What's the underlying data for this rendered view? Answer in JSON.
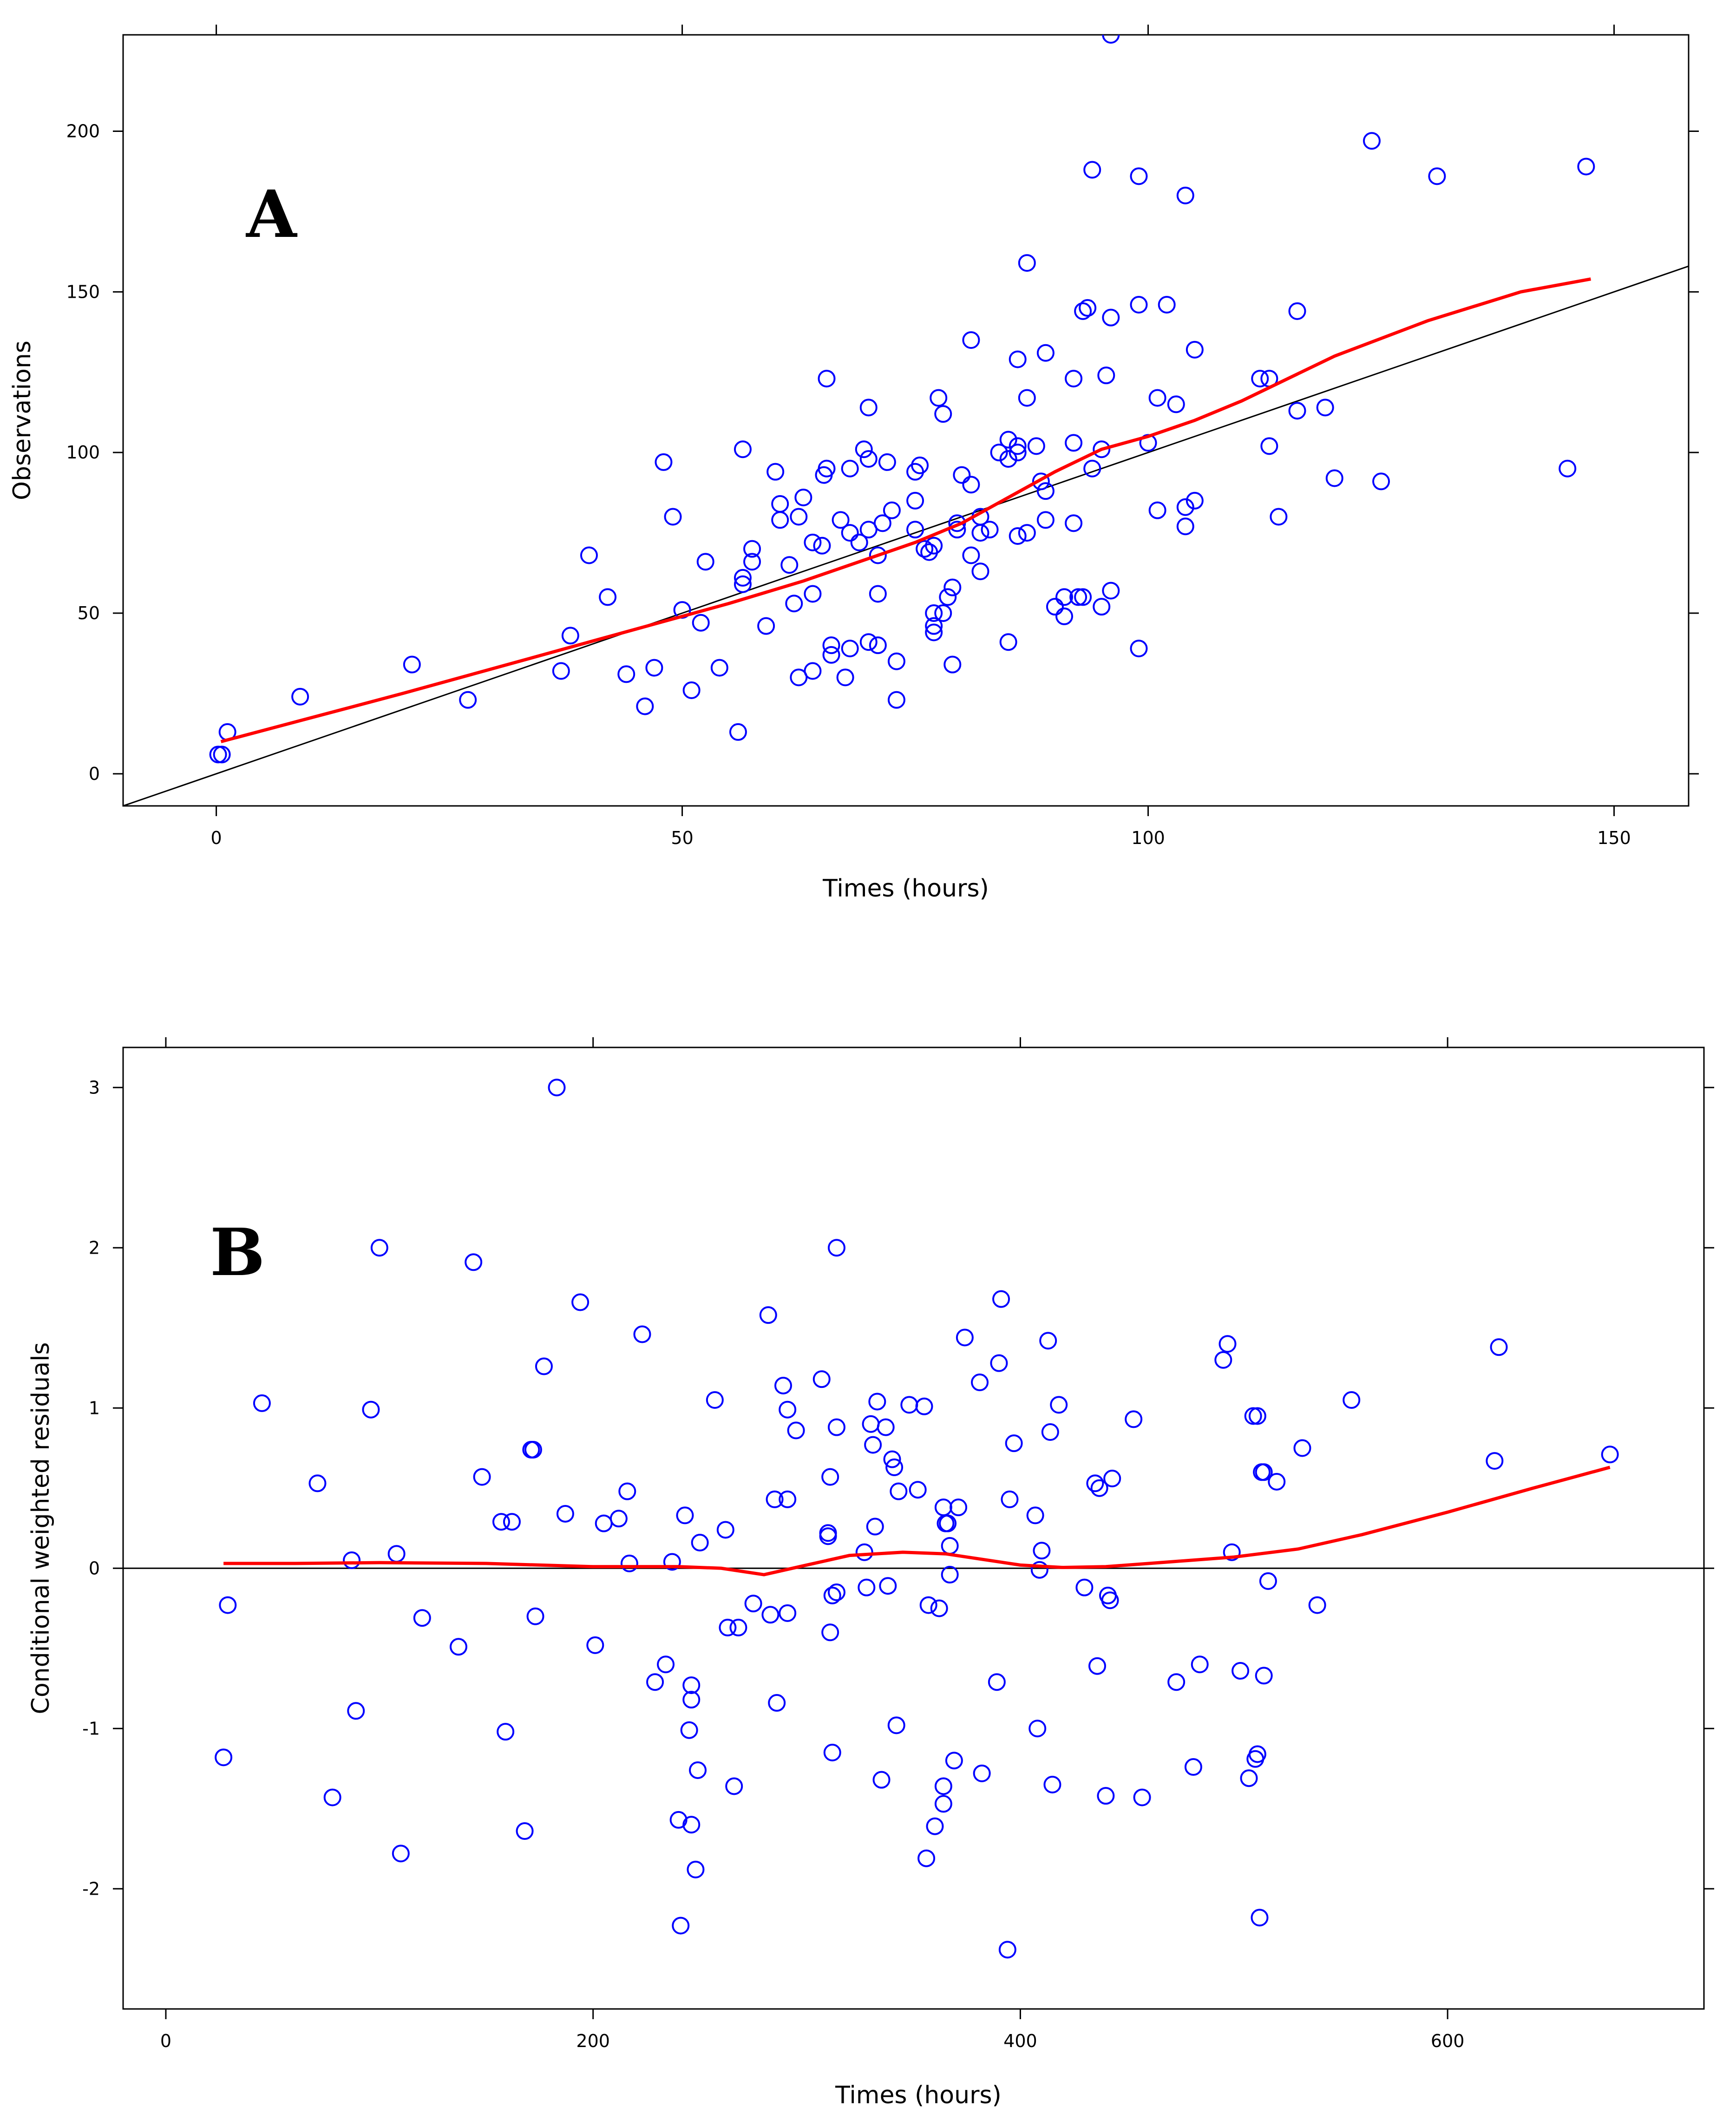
{
  "colors": {
    "points": "#0000ff",
    "smooth": "#ff0000",
    "reference": "#000000"
  },
  "chart_data": [
    {
      "type": "scatter",
      "panel_label": "A",
      "xlabel": "Times (hours)",
      "ylabel": "Observations",
      "xlim": [
        -10,
        158
      ],
      "ylim": [
        -10,
        230
      ],
      "xticks": [
        0,
        50,
        100,
        150
      ],
      "yticks": [
        0,
        50,
        100,
        150,
        200
      ],
      "reference_line": {
        "slope": 1,
        "intercept": 0,
        "label": "y = x"
      },
      "points": [
        [
          0.2,
          6
        ],
        [
          0.6,
          6
        ],
        [
          1.2,
          13
        ],
        [
          9,
          24
        ],
        [
          21,
          34
        ],
        [
          27,
          23
        ],
        [
          37,
          32
        ],
        [
          38,
          43
        ],
        [
          40,
          68
        ],
        [
          42,
          55
        ],
        [
          44,
          31
        ],
        [
          46,
          21
        ],
        [
          47,
          33
        ],
        [
          48,
          97
        ],
        [
          49,
          80
        ],
        [
          50,
          51
        ],
        [
          51,
          26
        ],
        [
          52,
          47
        ],
        [
          52.5,
          66
        ],
        [
          54,
          33
        ],
        [
          56,
          13
        ],
        [
          56.5,
          59
        ],
        [
          56.5,
          61
        ],
        [
          56.5,
          101
        ],
        [
          57.5,
          66
        ],
        [
          57.5,
          70
        ],
        [
          59,
          46
        ],
        [
          60,
          94
        ],
        [
          60.5,
          79
        ],
        [
          60.5,
          84
        ],
        [
          61.5,
          65
        ],
        [
          62,
          53
        ],
        [
          62.5,
          80
        ],
        [
          62.5,
          30
        ],
        [
          63,
          86
        ],
        [
          64,
          72
        ],
        [
          64,
          56
        ],
        [
          64,
          32
        ],
        [
          65,
          71
        ],
        [
          65.2,
          93
        ],
        [
          65.5,
          123
        ],
        [
          65.5,
          95
        ],
        [
          66,
          37
        ],
        [
          66,
          40
        ],
        [
          67,
          79
        ],
        [
          67.5,
          30
        ],
        [
          68,
          39
        ],
        [
          68,
          75
        ],
        [
          68,
          95
        ],
        [
          69,
          72
        ],
        [
          69.5,
          101
        ],
        [
          70,
          114
        ],
        [
          70,
          76
        ],
        [
          70,
          41
        ],
        [
          70,
          98
        ],
        [
          71,
          40
        ],
        [
          71,
          56
        ],
        [
          71,
          68
        ],
        [
          71.5,
          78
        ],
        [
          72,
          97
        ],
        [
          72.5,
          82
        ],
        [
          73,
          23
        ],
        [
          73,
          35
        ],
        [
          75,
          94
        ],
        [
          75,
          85
        ],
        [
          75,
          76
        ],
        [
          75.5,
          96
        ],
        [
          76,
          70
        ],
        [
          76.5,
          69
        ],
        [
          77,
          50
        ],
        [
          77,
          44
        ],
        [
          77,
          46
        ],
        [
          77,
          71
        ],
        [
          77.5,
          117
        ],
        [
          78,
          50
        ],
        [
          78,
          112
        ],
        [
          78.5,
          55
        ],
        [
          79,
          34
        ],
        [
          79,
          58
        ],
        [
          79.5,
          76
        ],
        [
          79.5,
          78
        ],
        [
          80,
          93
        ],
        [
          81,
          68
        ],
        [
          81,
          90
        ],
        [
          81,
          135
        ],
        [
          82,
          75
        ],
        [
          82,
          63
        ],
        [
          82,
          80
        ],
        [
          83,
          76
        ],
        [
          84,
          100
        ],
        [
          85,
          104
        ],
        [
          85,
          41
        ],
        [
          85,
          98
        ],
        [
          86,
          102
        ],
        [
          86,
          74
        ],
        [
          86,
          100
        ],
        [
          86,
          129
        ],
        [
          87,
          75
        ],
        [
          87,
          159
        ],
        [
          87,
          117
        ],
        [
          88,
          102
        ],
        [
          88.5,
          91
        ],
        [
          89,
          79
        ],
        [
          89,
          131
        ],
        [
          89,
          88
        ],
        [
          90,
          52
        ],
        [
          91,
          49
        ],
        [
          91,
          55
        ],
        [
          92,
          123
        ],
        [
          92,
          103
        ],
        [
          92,
          78
        ],
        [
          92.5,
          55
        ],
        [
          93,
          144
        ],
        [
          93,
          55
        ],
        [
          93.5,
          145
        ],
        [
          94,
          95
        ],
        [
          94,
          188
        ],
        [
          95,
          52
        ],
        [
          95,
          101
        ],
        [
          95.5,
          124
        ],
        [
          96,
          142
        ],
        [
          96,
          230
        ],
        [
          96,
          57
        ],
        [
          99,
          186
        ],
        [
          99,
          146
        ],
        [
          99,
          39
        ],
        [
          100,
          103
        ],
        [
          101,
          117
        ],
        [
          101,
          82
        ],
        [
          102,
          146
        ],
        [
          103,
          115
        ],
        [
          104,
          83
        ],
        [
          104,
          77
        ],
        [
          104,
          180
        ],
        [
          105,
          85
        ],
        [
          105,
          132
        ],
        [
          112,
          123
        ],
        [
          113,
          123
        ],
        [
          113,
          102
        ],
        [
          114,
          80
        ],
        [
          116,
          113
        ],
        [
          116,
          144
        ],
        [
          119,
          114
        ],
        [
          120,
          92
        ],
        [
          124,
          197
        ],
        [
          125,
          91
        ],
        [
          131,
          186
        ],
        [
          145,
          95
        ],
        [
          147,
          189
        ]
      ],
      "smooth_curve": [
        [
          0.5,
          10
        ],
        [
          20,
          25
        ],
        [
          40,
          41
        ],
        [
          55,
          53
        ],
        [
          63,
          60
        ],
        [
          70,
          67
        ],
        [
          75,
          72
        ],
        [
          80,
          78
        ],
        [
          85,
          86
        ],
        [
          90,
          94
        ],
        [
          95,
          101
        ],
        [
          100,
          105
        ],
        [
          105,
          110
        ],
        [
          110,
          116
        ],
        [
          115,
          123
        ],
        [
          120,
          130
        ],
        [
          130,
          141
        ],
        [
          140,
          150
        ],
        [
          147.5,
          154
        ]
      ]
    },
    {
      "type": "scatter",
      "panel_label": "B",
      "xlabel": "Times (hours)",
      "ylabel": "Conditional weighted residuals",
      "xlim": [
        -20,
        720
      ],
      "ylim": [
        -2.75,
        3.25
      ],
      "xticks": [
        0,
        200,
        400,
        600
      ],
      "yticks": [
        -2,
        -1,
        0,
        1,
        2,
        3
      ],
      "reference_line": {
        "slope": 0,
        "intercept": 0,
        "label": "y = 0"
      },
      "points": [
        [
          27,
          -1.18
        ],
        [
          29,
          -0.23
        ],
        [
          45,
          1.03
        ],
        [
          71,
          0.53
        ],
        [
          78,
          -1.43
        ],
        [
          87,
          0.05
        ],
        [
          89,
          -0.89
        ],
        [
          96,
          0.99
        ],
        [
          100,
          2
        ],
        [
          108,
          0.09
        ],
        [
          110,
          -1.78
        ],
        [
          120,
          -0.31
        ],
        [
          137,
          -0.49
        ],
        [
          144,
          1.91
        ],
        [
          148,
          0.57
        ],
        [
          157,
          0.29
        ],
        [
          159,
          -1.02
        ],
        [
          162,
          0.29
        ],
        [
          168,
          -1.64
        ],
        [
          171,
          0.74
        ],
        [
          172,
          0.74
        ],
        [
          173,
          -0.3
        ],
        [
          177,
          1.26
        ],
        [
          183,
          3
        ],
        [
          187,
          0.34
        ],
        [
          194,
          1.66
        ],
        [
          201,
          -0.48
        ],
        [
          205,
          0.28
        ],
        [
          212,
          0.31
        ],
        [
          216,
          0.48
        ],
        [
          217,
          0.03
        ],
        [
          223,
          1.46
        ],
        [
          229,
          -0.71
        ],
        [
          234,
          -0.6
        ],
        [
          237,
          0.04
        ],
        [
          240,
          -1.57
        ],
        [
          241,
          -2.23
        ],
        [
          243,
          0.33
        ],
        [
          245,
          -1.01
        ],
        [
          246,
          -0.73
        ],
        [
          246,
          -0.82
        ],
        [
          246,
          -1.6
        ],
        [
          248,
          -1.88
        ],
        [
          249,
          -1.26
        ],
        [
          250,
          0.16
        ],
        [
          257,
          1.05
        ],
        [
          262,
          0.24
        ],
        [
          263,
          -0.37
        ],
        [
          266,
          -1.36
        ],
        [
          268,
          -0.37
        ],
        [
          275,
          -0.22
        ],
        [
          282,
          1.58
        ],
        [
          283,
          -0.29
        ],
        [
          285,
          0.43
        ],
        [
          286,
          -0.84
        ],
        [
          289,
          1.14
        ],
        [
          291,
          0.99
        ],
        [
          291,
          0.43
        ],
        [
          291,
          -0.28
        ],
        [
          295,
          0.86
        ],
        [
          307,
          1.18
        ],
        [
          310,
          0.22
        ],
        [
          310,
          0.2
        ],
        [
          311,
          -0.4
        ],
        [
          311,
          0.57
        ],
        [
          312,
          -1.15
        ],
        [
          312,
          -0.17
        ],
        [
          314,
          -0.15
        ],
        [
          314,
          0.88
        ],
        [
          314,
          2
        ],
        [
          327,
          0.1
        ],
        [
          328,
          -0.12
        ],
        [
          330,
          0.9
        ],
        [
          331,
          0.77
        ],
        [
          332,
          0.26
        ],
        [
          333,
          1.04
        ],
        [
          335,
          -1.32
        ],
        [
          337,
          0.88
        ],
        [
          338,
          -0.11
        ],
        [
          340,
          0.68
        ],
        [
          341,
          0.63
        ],
        [
          342,
          -0.98
        ],
        [
          343,
          0.48
        ],
        [
          348,
          1.02
        ],
        [
          352,
          0.49
        ],
        [
          355,
          1.01
        ],
        [
          356,
          -1.81
        ],
        [
          357,
          -0.23
        ],
        [
          360,
          -1.61
        ],
        [
          362,
          -0.25
        ],
        [
          364,
          -1.36
        ],
        [
          364,
          0.38
        ],
        [
          364,
          -1.47
        ],
        [
          365,
          0.28
        ],
        [
          366,
          0.28
        ],
        [
          367,
          -0.04
        ],
        [
          367,
          0.14
        ],
        [
          369,
          -1.2
        ],
        [
          371,
          0.38
        ],
        [
          374,
          1.44
        ],
        [
          381,
          1.16
        ],
        [
          382,
          -1.28
        ],
        [
          389,
          -0.71
        ],
        [
          390,
          1.28
        ],
        [
          391,
          1.68
        ],
        [
          394,
          -2.38
        ],
        [
          395,
          0.43
        ],
        [
          397,
          0.78
        ],
        [
          407,
          0.33
        ],
        [
          408,
          -1
        ],
        [
          409,
          -0.01
        ],
        [
          410,
          0.11
        ],
        [
          413,
          1.42
        ],
        [
          414,
          0.85
        ],
        [
          415,
          -1.35
        ],
        [
          418,
          1.02
        ],
        [
          430,
          -0.12
        ],
        [
          435,
          0.53
        ],
        [
          436,
          -0.61
        ],
        [
          437,
          0.5
        ],
        [
          440,
          -1.42
        ],
        [
          441,
          -0.17
        ],
        [
          442,
          -0.2
        ],
        [
          443,
          0.56
        ],
        [
          453,
          0.93
        ],
        [
          457,
          -1.43
        ],
        [
          473,
          -0.71
        ],
        [
          481,
          -1.24
        ],
        [
          484,
          -0.6
        ],
        [
          495,
          1.3
        ],
        [
          497,
          1.4
        ],
        [
          499,
          0.1
        ],
        [
          503,
          -0.64
        ],
        [
          507,
          -1.31
        ],
        [
          509,
          0.95
        ],
        [
          510,
          -1.19
        ],
        [
          511,
          0.95
        ],
        [
          511,
          -1.16
        ],
        [
          512,
          -2.18
        ],
        [
          513,
          0.6
        ],
        [
          514,
          -0.67
        ],
        [
          514,
          0.6
        ],
        [
          516,
          -0.08
        ],
        [
          520,
          0.54
        ],
        [
          532,
          0.75
        ],
        [
          539,
          -0.23
        ],
        [
          555,
          1.05
        ],
        [
          622,
          0.67
        ],
        [
          624,
          1.38
        ],
        [
          676,
          0.71
        ]
      ],
      "smooth_curve": [
        [
          27,
          0.03
        ],
        [
          60,
          0.03
        ],
        [
          100,
          0.035
        ],
        [
          150,
          0.03
        ],
        [
          200,
          0.01
        ],
        [
          240,
          0.01
        ],
        [
          260,
          0
        ],
        [
          280,
          -0.04
        ],
        [
          300,
          0.02
        ],
        [
          320,
          0.08
        ],
        [
          345,
          0.1
        ],
        [
          365,
          0.09
        ],
        [
          380,
          0.06
        ],
        [
          400,
          0.02
        ],
        [
          420,
          0.005
        ],
        [
          440,
          0.01
        ],
        [
          470,
          0.04
        ],
        [
          500,
          0.07
        ],
        [
          530,
          0.12
        ],
        [
          560,
          0.21
        ],
        [
          600,
          0.35
        ],
        [
          640,
          0.5
        ],
        [
          676,
          0.63
        ]
      ]
    }
  ]
}
